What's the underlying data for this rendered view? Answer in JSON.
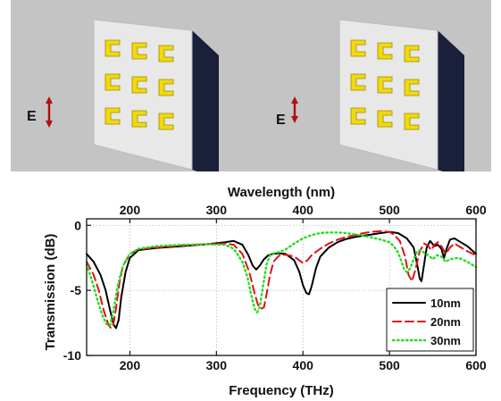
{
  "illustration": {
    "left_field_label": "E",
    "right_field_label": "E",
    "colors": {
      "background": "#c4c4c4",
      "block_front": "#e8e8e8",
      "block_side": "#1a1f3a",
      "resonator": "#f2d90c",
      "arrow": "#b01010"
    }
  },
  "chart_data": {
    "type": "line",
    "xlabel": "Frequency (THz)",
    "x2label": "Wavelength (nm)",
    "ylabel": "Transmission (dB)",
    "xlim": [
      150,
      600
    ],
    "ylim": [
      -10,
      0.5
    ],
    "x_ticks": [
      200,
      300,
      400,
      500,
      600
    ],
    "y_ticks": [
      0,
      -5,
      -10
    ],
    "x_tick_labels": [
      "200",
      "300",
      "400",
      "500",
      "600"
    ],
    "x2_tick_labels": [
      "200",
      "300",
      "400",
      "500",
      "600"
    ],
    "y_tick_labels": [
      "0",
      "-5",
      "-10"
    ],
    "grid": true,
    "legend_position": "bottom-right",
    "series": [
      {
        "name": "10nm",
        "color": "#000000",
        "dash": "solid",
        "x": [
          150,
          158,
          166,
          172,
          177,
          181,
          184,
          187,
          190,
          195,
          200,
          210,
          230,
          260,
          290,
          310,
          320,
          330,
          337,
          342,
          346,
          350,
          355,
          360,
          365,
          372,
          380,
          390,
          396,
          400,
          404,
          407,
          410,
          415,
          420,
          430,
          440,
          450,
          460,
          470,
          480,
          490,
          500,
          510,
          520,
          528,
          532,
          535,
          537,
          540,
          543,
          547,
          552,
          556,
          560,
          563,
          566,
          570,
          575,
          580,
          590,
          600
        ],
        "y": [
          -2.2,
          -2.8,
          -3.8,
          -5.0,
          -6.5,
          -7.6,
          -7.9,
          -7.3,
          -5.5,
          -3.6,
          -2.5,
          -1.9,
          -1.75,
          -1.6,
          -1.45,
          -1.3,
          -1.2,
          -1.5,
          -2.3,
          -3.1,
          -3.4,
          -3.1,
          -2.6,
          -2.3,
          -2.2,
          -2.15,
          -2.2,
          -2.7,
          -3.6,
          -4.6,
          -5.2,
          -5.3,
          -4.7,
          -3.3,
          -2.4,
          -1.7,
          -1.3,
          -1.05,
          -0.9,
          -0.8,
          -0.7,
          -0.6,
          -0.5,
          -0.6,
          -1.0,
          -1.7,
          -3.0,
          -4.1,
          -4.3,
          -3.0,
          -1.7,
          -1.2,
          -1.6,
          -1.5,
          -1.8,
          -2.5,
          -1.8,
          -1.1,
          -1.0,
          -1.2,
          -1.6,
          -2.2
        ]
      },
      {
        "name": "20nm",
        "color": "#e01010",
        "dash": "dashed",
        "x": [
          150,
          158,
          164,
          170,
          175,
          178,
          181,
          184,
          188,
          192,
          200,
          210,
          230,
          260,
          290,
          310,
          320,
          330,
          338,
          344,
          348,
          352,
          355,
          358,
          362,
          366,
          372,
          380,
          390,
          396,
          400,
          405,
          410,
          420,
          430,
          440,
          450,
          460,
          470,
          480,
          490,
          500,
          505,
          512,
          518,
          522,
          526,
          530,
          535,
          540,
          545,
          548,
          552,
          556,
          560,
          565,
          570,
          575,
          580,
          585,
          590,
          600
        ],
        "y": [
          -2.8,
          -3.8,
          -5.0,
          -6.6,
          -7.6,
          -7.9,
          -7.6,
          -6.4,
          -4.4,
          -3.1,
          -2.2,
          -1.85,
          -1.7,
          -1.55,
          -1.45,
          -1.4,
          -1.5,
          -2.2,
          -3.6,
          -5.2,
          -6.1,
          -6.4,
          -6.3,
          -5.3,
          -3.8,
          -2.8,
          -2.35,
          -2.25,
          -2.4,
          -2.7,
          -2.9,
          -2.7,
          -2.3,
          -1.8,
          -1.4,
          -1.1,
          -0.9,
          -0.75,
          -0.6,
          -0.5,
          -0.45,
          -0.5,
          -0.7,
          -1.2,
          -2.4,
          -3.8,
          -4.3,
          -3.4,
          -2.0,
          -1.4,
          -1.6,
          -1.9,
          -1.5,
          -1.3,
          -1.6,
          -2.2,
          -1.7,
          -1.4,
          -1.6,
          -1.8,
          -2.0,
          -2.3
        ]
      },
      {
        "name": "30nm",
        "color": "#22dd22",
        "dash": "dotted",
        "x": [
          150,
          156,
          162,
          168,
          173,
          177,
          181,
          186,
          192,
          200,
          210,
          230,
          260,
          290,
          310,
          320,
          330,
          336,
          340,
          344,
          347,
          350,
          354,
          358,
          362,
          366,
          370,
          375,
          380,
          390,
          400,
          410,
          420,
          430,
          440,
          450,
          460,
          470,
          480,
          490,
          500,
          505,
          510,
          514,
          517,
          520,
          524,
          528,
          532,
          536,
          540,
          545,
          550,
          555,
          560,
          565,
          570,
          580,
          590,
          600
        ],
        "y": [
          -3.0,
          -4.2,
          -5.6,
          -6.9,
          -7.6,
          -7.7,
          -6.6,
          -4.6,
          -3.1,
          -2.2,
          -1.8,
          -1.6,
          -1.5,
          -1.45,
          -1.5,
          -1.8,
          -2.8,
          -4.0,
          -5.3,
          -6.4,
          -6.7,
          -6.3,
          -4.6,
          -3.0,
          -2.3,
          -2.15,
          -2.1,
          -2.0,
          -1.85,
          -1.4,
          -1.0,
          -0.75,
          -0.6,
          -0.55,
          -0.55,
          -0.6,
          -0.7,
          -0.8,
          -0.95,
          -1.1,
          -1.3,
          -1.6,
          -2.1,
          -2.8,
          -3.4,
          -3.6,
          -3.3,
          -2.6,
          -2.0,
          -1.9,
          -2.1,
          -2.3,
          -2.6,
          -2.3,
          -2.4,
          -2.8,
          -2.6,
          -2.5,
          -2.8,
          -3.2
        ]
      }
    ]
  }
}
